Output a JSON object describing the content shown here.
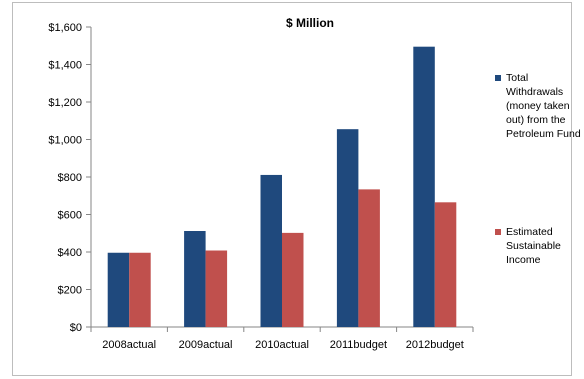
{
  "chart_data": {
    "type": "bar",
    "title": "$ Million",
    "categories": [
      "2008actual",
      "2009actual",
      "2010actual",
      "2011budget",
      "2012budget"
    ],
    "series": [
      {
        "name": "Total Withdrawals (money taken out) from the Petroleum Fund",
        "legend_lines": [
          "Total",
          "Withdrawals",
          "(money taken",
          "out) from the",
          "Petroleum Fund"
        ],
        "color": "#1F497D",
        "values": [
          396,
          512,
          811,
          1055,
          1495
        ]
      },
      {
        "name": "Estimated Sustainable Income",
        "legend_lines": [
          "Estimated",
          "Sustainable",
          "Income"
        ],
        "color": "#C0504D",
        "values": [
          396,
          408,
          502,
          734,
          665
        ]
      }
    ],
    "ylim": [
      0,
      1600
    ],
    "yticks": [
      0,
      200,
      400,
      600,
      800,
      1000,
      1200,
      1400,
      1600
    ],
    "ytick_labels": [
      "$0",
      "$200",
      "$400",
      "$600",
      "$800",
      "$1,000",
      "$1,200",
      "$1,400",
      "$1,600"
    ],
    "grid": false,
    "legend": "right"
  }
}
